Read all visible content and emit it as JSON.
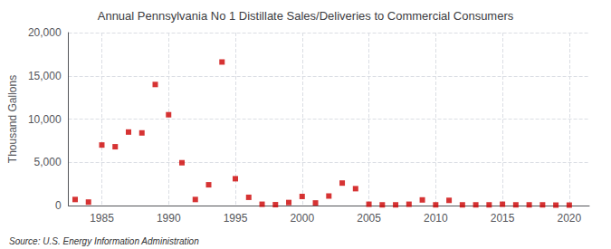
{
  "chart_data": {
    "type": "scatter",
    "title": "Annual Pennsylvania No 1 Distillate Sales/Deliveries to Commercial Consumers",
    "ylabel": "Thousand Gallons",
    "source": "Source: U.S. Energy Information Administration",
    "color": "#cc0000",
    "marker": "square",
    "grid": true,
    "xlim": [
      1982.5,
      2021.5
    ],
    "ylim": [
      0,
      20000
    ],
    "xticks": [
      1985,
      1990,
      1995,
      2000,
      2005,
      2010,
      2015,
      2020
    ],
    "yticks": [
      0,
      {
        "value": 5000,
        "label": "5,000"
      },
      {
        "value": 10000,
        "label": "10,000"
      },
      {
        "value": 15000,
        "label": "15,000"
      },
      {
        "value": 20000,
        "label": "20,000"
      }
    ],
    "x": [
      1983,
      1984,
      1985,
      1986,
      1987,
      1988,
      1989,
      1990,
      1991,
      1992,
      1993,
      1994,
      1995,
      1996,
      1997,
      1998,
      1999,
      2000,
      2001,
      2002,
      2003,
      2004,
      2005,
      2006,
      2007,
      2008,
      2009,
      2010,
      2011,
      2012,
      2013,
      2014,
      2015,
      2016,
      2017,
      2018,
      2019,
      2020
    ],
    "values": [
      700,
      400,
      7000,
      6800,
      8500,
      8400,
      14000,
      10500,
      4950,
      700,
      2400,
      16600,
      3100,
      950,
      150,
      100,
      350,
      1050,
      300,
      1100,
      2600,
      1950,
      150,
      80,
      80,
      150,
      650,
      80,
      600,
      80,
      80,
      80,
      150,
      80,
      80,
      80,
      50,
      50
    ]
  }
}
